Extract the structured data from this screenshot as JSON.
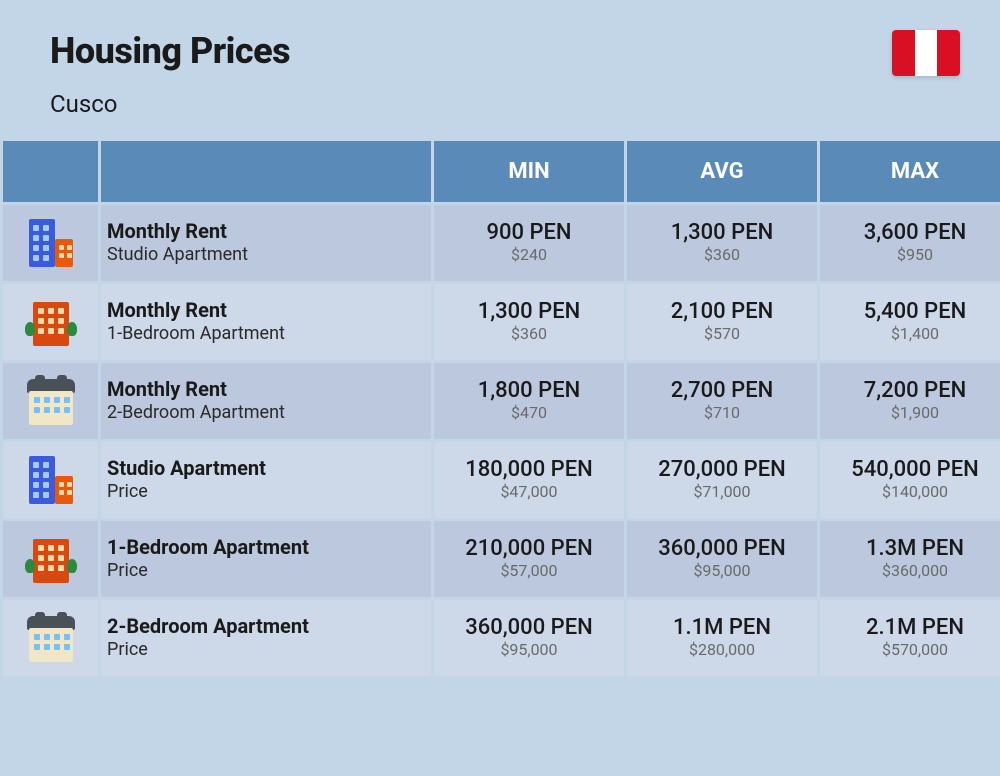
{
  "header": {
    "title": "Housing Prices",
    "subtitle": "Cusco",
    "flag_colors": [
      "#d91023",
      "#ffffff",
      "#d91023"
    ]
  },
  "table": {
    "columns": [
      "MIN",
      "AVG",
      "MAX"
    ],
    "rows": [
      {
        "icon": "buildings-icon",
        "title": "Monthly Rent",
        "sub": "Studio Apartment",
        "min_pen": "900 PEN",
        "min_usd": "$240",
        "avg_pen": "1,300 PEN",
        "avg_usd": "$360",
        "max_pen": "3,600 PEN",
        "max_usd": "$950"
      },
      {
        "icon": "apartment-icon",
        "title": "Monthly Rent",
        "sub": "1-Bedroom Apartment",
        "min_pen": "1,300 PEN",
        "min_usd": "$360",
        "avg_pen": "2,100 PEN",
        "avg_usd": "$570",
        "max_pen": "5,400 PEN",
        "max_usd": "$1,400"
      },
      {
        "icon": "house-icon",
        "title": "Monthly Rent",
        "sub": "2-Bedroom Apartment",
        "min_pen": "1,800 PEN",
        "min_usd": "$470",
        "avg_pen": "2,700 PEN",
        "avg_usd": "$710",
        "max_pen": "7,200 PEN",
        "max_usd": "$1,900"
      },
      {
        "icon": "buildings-icon",
        "title": "Studio Apartment",
        "sub": "Price",
        "min_pen": "180,000 PEN",
        "min_usd": "$47,000",
        "avg_pen": "270,000 PEN",
        "avg_usd": "$71,000",
        "max_pen": "540,000 PEN",
        "max_usd": "$140,000"
      },
      {
        "icon": "apartment-icon",
        "title": "1-Bedroom Apartment",
        "sub": "Price",
        "min_pen": "210,000 PEN",
        "min_usd": "$57,000",
        "avg_pen": "360,000 PEN",
        "avg_usd": "$95,000",
        "max_pen": "1.3M PEN",
        "max_usd": "$360,000"
      },
      {
        "icon": "house-icon",
        "title": "2-Bedroom Apartment",
        "sub": "Price",
        "min_pen": "360,000 PEN",
        "min_usd": "$95,000",
        "avg_pen": "1.1M PEN",
        "avg_usd": "$280,000",
        "max_pen": "2.1M PEN",
        "max_usd": "$570,000"
      }
    ]
  },
  "style": {
    "background": "#c2d6e7",
    "header_blue": "#5a8bb8",
    "row_odd": "#bcc8dd",
    "row_even": "#cdd8e8",
    "text": "#1a1a1a",
    "sub_text": "#6a6a6a",
    "title_fontsize": 36,
    "subtitle_fontsize": 24,
    "th_fontsize": 22,
    "row_title_fontsize": 20,
    "row_sub_fontsize": 18,
    "pen_fontsize": 22,
    "usd_fontsize": 16
  }
}
